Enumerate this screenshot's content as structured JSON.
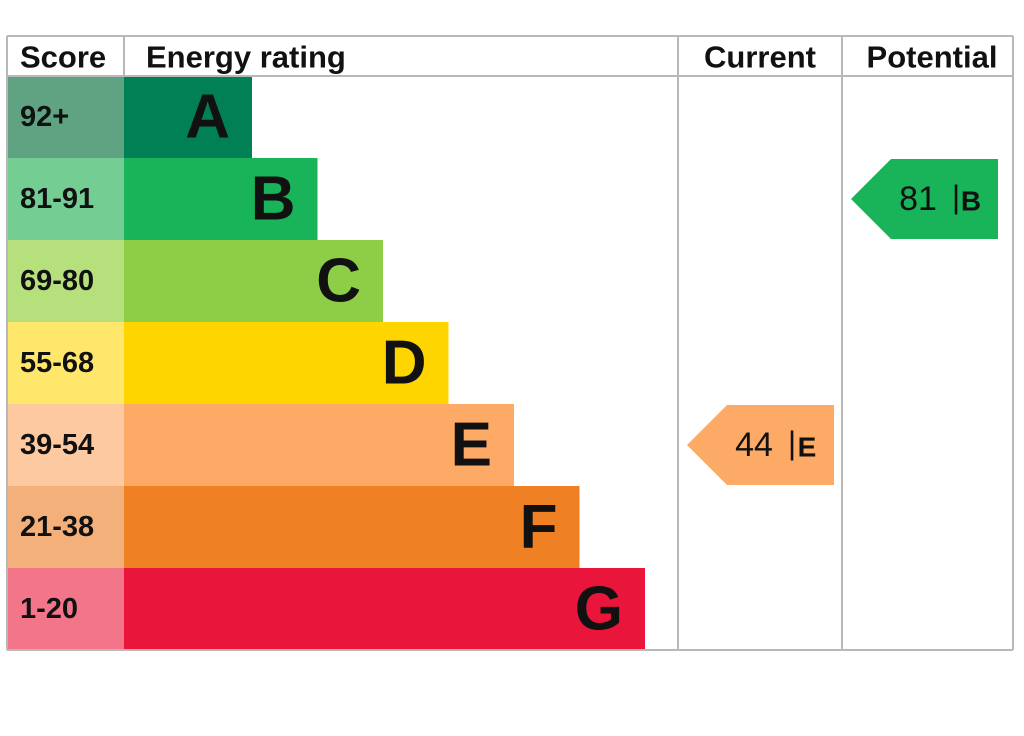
{
  "header": {
    "score": "Score",
    "energy_rating": "Energy rating",
    "current": "Current",
    "potential": "Potential"
  },
  "bands": [
    {
      "score": "92+",
      "letter": "A",
      "color": "#008054",
      "tint": "#5fa382"
    },
    {
      "score": "81-91",
      "letter": "B",
      "color": "#19b459",
      "tint": "#74ce94"
    },
    {
      "score": "69-80",
      "letter": "C",
      "color": "#8dce46",
      "tint": "#b6e07b"
    },
    {
      "score": "55-68",
      "letter": "D",
      "color": "#ffd500",
      "tint": "#fee76a"
    },
    {
      "score": "39-54",
      "letter": "E",
      "color": "#fcaa65",
      "tint": "#fdc9a0"
    },
    {
      "score": "21-38",
      "letter": "F",
      "color": "#ef8023",
      "tint": "#f3b07b"
    },
    {
      "score": "1-20",
      "letter": "G",
      "color": "#e9153b",
      "tint": "#f3758a"
    }
  ],
  "separator": "|",
  "current": {
    "value": 44,
    "letter": "E"
  },
  "potential": {
    "value": 81,
    "letter": "B"
  }
}
